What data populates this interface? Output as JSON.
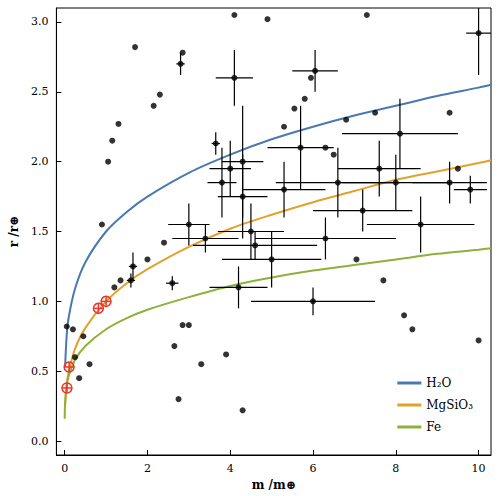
{
  "chart_data": {
    "type": "scatter",
    "x_label": "m /m⊕",
    "y_label": "r /r⊕",
    "xlim": [
      -0.2,
      10.3
    ],
    "ylim": [
      -0.1,
      3.1
    ],
    "xticks": [
      0,
      2,
      4,
      6,
      8,
      10
    ],
    "yticks": [
      {
        "value": 0,
        "label": "0.0"
      },
      0.5,
      {
        "value": 1,
        "label": "1.0"
      },
      1.5,
      {
        "value": 2,
        "label": "2.0"
      },
      2.5,
      {
        "value": 3,
        "label": "3.0"
      }
    ],
    "grid": false,
    "legend": "lower right",
    "series": [
      {
        "name": "H₂O",
        "type": "line",
        "color": "#4a78b0",
        "x": [
          0.01,
          0.05,
          0.1,
          0.25,
          0.5,
          1,
          1.5,
          2,
          3,
          4,
          5,
          6,
          7,
          8,
          9,
          10,
          10.3
        ],
        "values": [
          0.53,
          0.76,
          0.89,
          1.09,
          1.28,
          1.5,
          1.64,
          1.75,
          1.92,
          2.05,
          2.16,
          2.25,
          2.33,
          2.4,
          2.47,
          2.53,
          2.55
        ]
      },
      {
        "name": "MgSiO₃",
        "type": "line",
        "color": "#e3a02a",
        "x": [
          0.01,
          0.05,
          0.1,
          0.25,
          0.5,
          1,
          1.5,
          2,
          3,
          4,
          5,
          6,
          7,
          8,
          9,
          10,
          10.3
        ],
        "values": [
          0.25,
          0.41,
          0.5,
          0.66,
          0.81,
          1.0,
          1.13,
          1.23,
          1.39,
          1.52,
          1.62,
          1.71,
          1.79,
          1.87,
          1.93,
          1.99,
          2.01
        ]
      },
      {
        "name": "Fe",
        "type": "line",
        "color": "#8db13a",
        "x": [
          0.001,
          0.01,
          0.05,
          0.1,
          0.25,
          0.5,
          1,
          1.5,
          2,
          3,
          4,
          5,
          6,
          7,
          8,
          9,
          10,
          10.3
        ],
        "values": [
          0.16,
          0.27,
          0.4,
          0.47,
          0.58,
          0.68,
          0.8,
          0.88,
          0.94,
          1.03,
          1.11,
          1.17,
          1.22,
          1.26,
          1.3,
          1.34,
          1.37,
          1.38
        ]
      },
      {
        "type": "scatter",
        "color": "#000000",
        "marker": "circle",
        "x": [
          0.05,
          0.2,
          0.25,
          0.35,
          0.45,
          0.6,
          0.9,
          1.05,
          1.15,
          1.3,
          1.2,
          1.7,
          2.15,
          2.3,
          2.85,
          2.85,
          2.65,
          2.75,
          3.0,
          3.3,
          3.9,
          4.1,
          4.3,
          4.9,
          5.3,
          5.55,
          5.8,
          5.95,
          6.3,
          6.5,
          6.8,
          7.3,
          7.05,
          7.5,
          7.7,
          8.2,
          8.4,
          9.3,
          9.5,
          10.0,
          2.0,
          2.4,
          1.35,
          2.8,
          4.1,
          3.65,
          6.05,
          10.0,
          1.6,
          2.6,
          1.65,
          3.8,
          4.0,
          4.3,
          5.3,
          6.6,
          7.2,
          8.0,
          9.3,
          9.8,
          8.6,
          6.3,
          4.5,
          3.4,
          5.0,
          4.2,
          6.0,
          4.6,
          3.0,
          7.6,
          8.1,
          5.7,
          4.3
        ],
        "values": [
          0.82,
          0.8,
          0.6,
          0.45,
          0.75,
          0.55,
          1.55,
          2.0,
          2.15,
          2.27,
          1.1,
          2.82,
          2.4,
          2.48,
          2.78,
          0.83,
          0.68,
          0.3,
          0.83,
          0.55,
          0.62,
          3.05,
          0.22,
          3.02,
          2.25,
          2.38,
          2.45,
          2.6,
          2.1,
          2.05,
          2.3,
          3.05,
          1.3,
          2.35,
          1.15,
          0.9,
          0.8,
          2.35,
          1.95,
          0.72,
          1.3,
          1.42,
          1.15,
          2.7,
          2.6,
          2.13,
          2.65,
          2.92,
          1.15,
          1.13,
          1.25,
          1.85,
          1.95,
          1.75,
          1.8,
          1.85,
          1.65,
          1.85,
          1.85,
          1.8,
          1.55,
          1.45,
          1.5,
          1.45,
          1.3,
          1.1,
          1.0,
          1.4,
          1.55,
          1.95,
          2.2,
          2.1,
          2.0
        ],
        "xerr": [
          null,
          null,
          null,
          null,
          null,
          null,
          null,
          null,
          null,
          null,
          null,
          null,
          null,
          null,
          null,
          null,
          null,
          null,
          null,
          null,
          null,
          null,
          null,
          null,
          null,
          null,
          null,
          null,
          null,
          null,
          null,
          null,
          null,
          null,
          null,
          null,
          null,
          null,
          null,
          null,
          null,
          null,
          null,
          0.1,
          0.45,
          0.1,
          0.55,
          0.3,
          0.1,
          0.15,
          0.1,
          0.35,
          0.5,
          0.6,
          1.0,
          1.5,
          1.2,
          1.3,
          0.9,
          0.4,
          1.3,
          1.7,
          0.8,
          0.8,
          1.2,
          0.7,
          1.5,
          1.5,
          0.5,
          1.0,
          1.4,
          0.8,
          0.5
        ],
        "yerr": [
          null,
          null,
          null,
          null,
          null,
          null,
          null,
          null,
          null,
          null,
          null,
          null,
          null,
          null,
          null,
          null,
          null,
          null,
          null,
          null,
          null,
          null,
          null,
          null,
          null,
          null,
          null,
          null,
          null,
          null,
          null,
          null,
          null,
          null,
          null,
          null,
          null,
          null,
          null,
          null,
          null,
          null,
          null,
          0.08,
          0.2,
          0.08,
          0.15,
          0.3,
          0.05,
          0.05,
          0.1,
          0.25,
          0.2,
          0.3,
          0.2,
          0.25,
          0.15,
          0.2,
          0.15,
          0.1,
          0.2,
          0.15,
          0.2,
          0.1,
          0.2,
          0.15,
          0.1,
          0.1,
          0.15,
          0.2,
          0.25,
          0.3,
          0.4
        ]
      },
      {
        "type": "scatter",
        "color": "#e8372c",
        "marker": "crossed_circle",
        "x": [
          0.055,
          0.107,
          0.815,
          1.0
        ],
        "values": [
          0.38,
          0.53,
          0.95,
          1.0
        ]
      }
    ]
  }
}
